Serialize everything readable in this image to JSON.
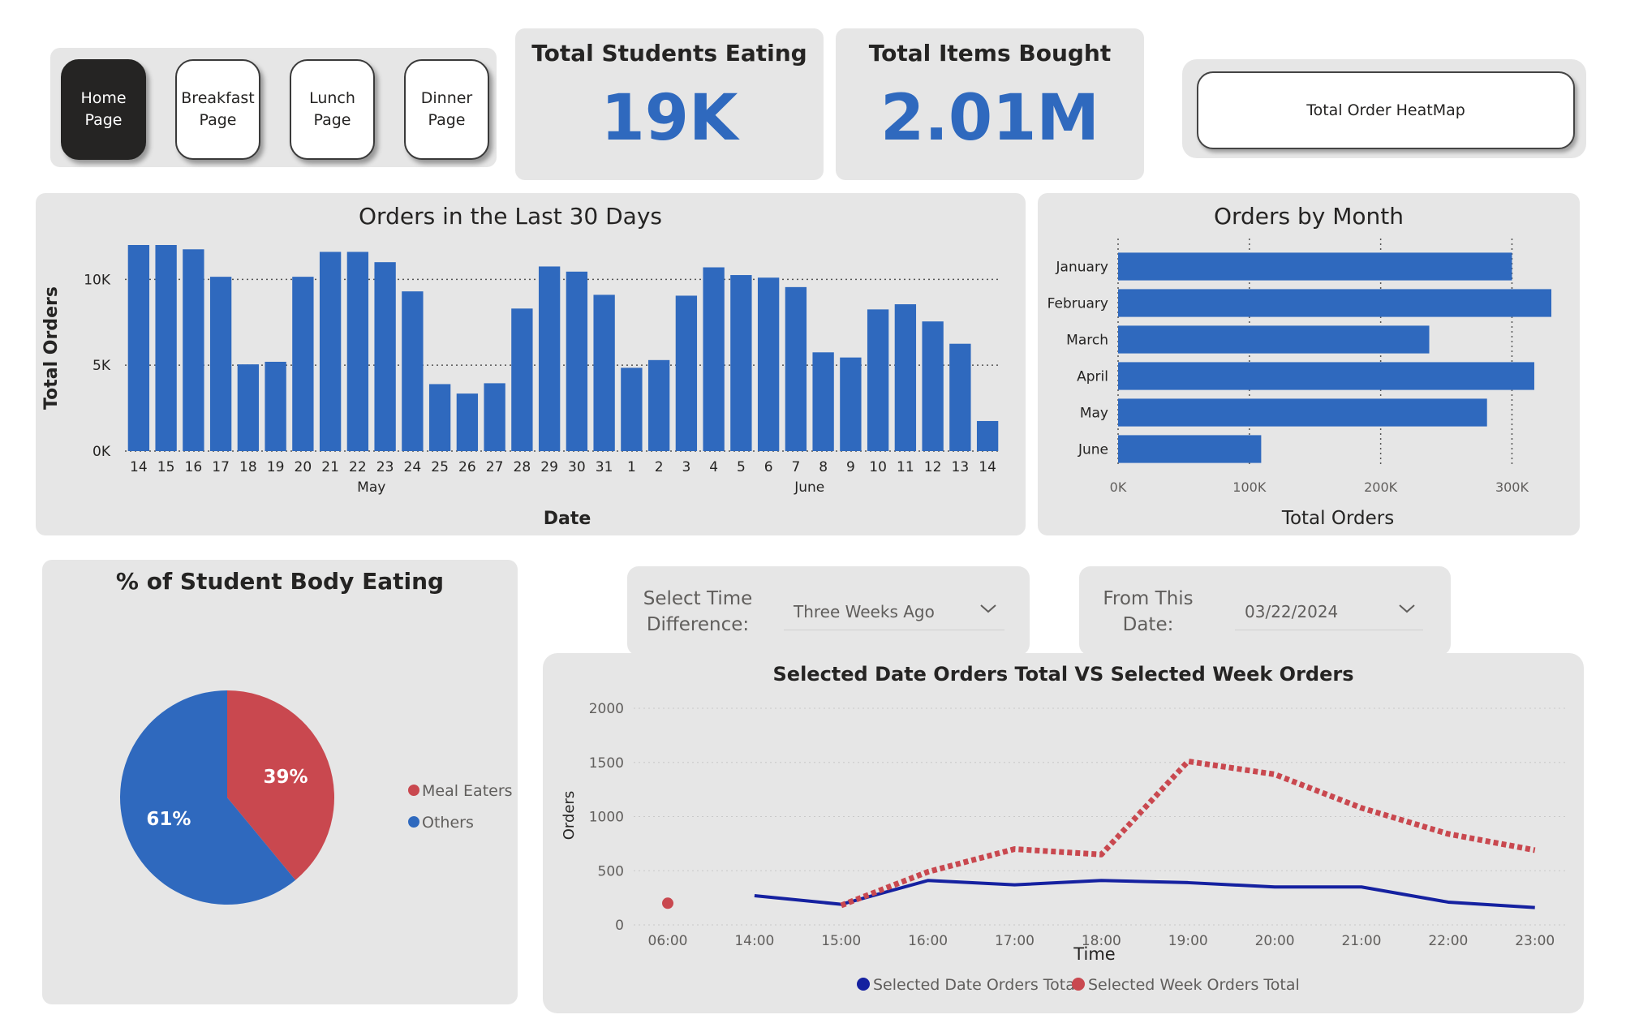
{
  "nav": {
    "buttons": [
      {
        "label": "Home\nPage",
        "active": true
      },
      {
        "label": "Breakfast\nPage",
        "active": false
      },
      {
        "label": "Lunch\nPage",
        "active": false
      },
      {
        "label": "Dinner\nPage",
        "active": false
      }
    ]
  },
  "kpis": [
    {
      "title": "Total Students Eating",
      "value": "19K"
    },
    {
      "title": "Total Items Bought",
      "value": "2.01M"
    }
  ],
  "heatmap_button": {
    "label": "Total Order HeatMap"
  },
  "slicers": {
    "time_difference": {
      "label": "Select Time\nDifference:",
      "value": "Three Weeks Ago",
      "icon": "chevron-down-icon"
    },
    "from_date": {
      "label": "From This\nDate:",
      "value": "03/22/2024",
      "icon": "chevron-down-icon"
    }
  },
  "colors": {
    "bar_blue": "#2f69be",
    "pie_red": "#c9484f",
    "line_navy": "#1521a0",
    "line_red": "#c9484f",
    "panel_bg": "#e6e6e6",
    "kpi_blue": "#2f69be"
  },
  "chart_data": [
    {
      "id": "last30",
      "type": "bar",
      "title": "Orders in the Last 30 Days",
      "xlabel": "Date",
      "ylabel": "Total Orders",
      "categories": [
        "14",
        "15",
        "16",
        "17",
        "18",
        "19",
        "20",
        "21",
        "22",
        "23",
        "24",
        "25",
        "26",
        "27",
        "28",
        "29",
        "30",
        "31",
        "1",
        "2",
        "3",
        "4",
        "5",
        "6",
        "7",
        "8",
        "9",
        "10",
        "11",
        "12",
        "13",
        "14"
      ],
      "month_labels": [
        {
          "label": "May",
          "index": 8.5
        },
        {
          "label": "June",
          "index": 24.5
        }
      ],
      "values": [
        12000,
        12000,
        11750,
        10150,
        5050,
        5200,
        10150,
        11600,
        11600,
        11000,
        9300,
        3900,
        3350,
        3950,
        8300,
        10750,
        10450,
        9100,
        4850,
        5300,
        9050,
        10700,
        10250,
        10100,
        9550,
        5750,
        5450,
        8250,
        8550,
        7550,
        6250,
        1750
      ],
      "ylim": [
        0,
        12000
      ],
      "yticks": [
        {
          "v": 0,
          "label": "0K"
        },
        {
          "v": 5000,
          "label": "5K"
        },
        {
          "v": 10000,
          "label": "10K"
        }
      ],
      "grid": true
    },
    {
      "id": "bymonth",
      "type": "bar",
      "orientation": "horizontal",
      "title": "Orders by Month",
      "xlabel": "Total Orders",
      "categories": [
        "January",
        "February",
        "March",
        "April",
        "May",
        "June"
      ],
      "values": [
        300000,
        330000,
        237000,
        317000,
        281000,
        109000
      ],
      "xlim": [
        0,
        330000
      ],
      "xticks": [
        {
          "v": 0,
          "label": "0K"
        },
        {
          "v": 100000,
          "label": "100K"
        },
        {
          "v": 200000,
          "label": "200K"
        },
        {
          "v": 300000,
          "label": "300K"
        }
      ],
      "grid": true
    },
    {
      "id": "pie",
      "type": "pie",
      "title": "% of Student Body Eating",
      "slices": [
        {
          "name": "Meal Eaters",
          "value": 39,
          "label": "39%",
          "color": "#c9484f"
        },
        {
          "name": "Others",
          "value": 61,
          "label": "61%",
          "color": "#2f69be"
        }
      ],
      "legend": "right"
    },
    {
      "id": "lines",
      "type": "line",
      "title": "Selected Date Orders Total VS Selected Week Orders",
      "xlabel": "Time",
      "ylabel": "Orders",
      "x": [
        "06:00",
        "14:00",
        "15:00",
        "16:00",
        "17:00",
        "18:00",
        "19:00",
        "20:00",
        "21:00",
        "22:00",
        "23:00"
      ],
      "ylim": [
        0,
        2000
      ],
      "yticks": [
        0,
        500,
        1000,
        1500,
        2000
      ],
      "series": [
        {
          "name": "Selected Date Orders Total",
          "style": "solid",
          "color": "#1521a0",
          "values": [
            null,
            270,
            190,
            410,
            370,
            410,
            390,
            350,
            350,
            210,
            160
          ]
        },
        {
          "name": "Selected Week Orders Total",
          "style": "dotted",
          "color": "#c9484f",
          "values": [
            200,
            null,
            180,
            490,
            700,
            650,
            1510,
            1390,
            1080,
            840,
            690
          ]
        }
      ],
      "legend": "bottom"
    }
  ]
}
